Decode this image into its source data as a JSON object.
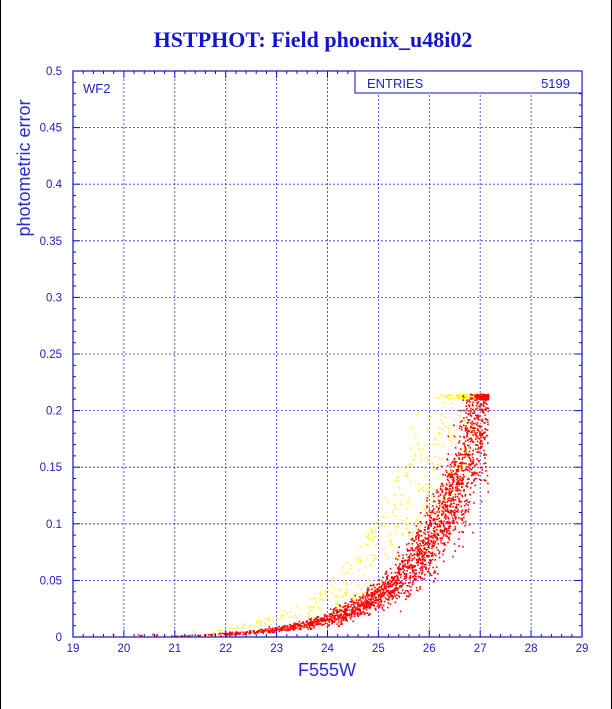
{
  "chart_data": {
    "type": "scatter",
    "title": "HSTPHOT: Field phoenix_u48i02",
    "xlabel": "F555W",
    "ylabel": "photometric error",
    "xlim": [
      19,
      29
    ],
    "ylim": [
      0,
      0.5
    ],
    "xticks": [
      "19",
      "20",
      "21",
      "22",
      "23",
      "24",
      "25",
      "26",
      "27",
      "28",
      "29"
    ],
    "yticks": [
      "0",
      "0.05",
      "0.1",
      "0.15",
      "0.2",
      "0.25",
      "0.3",
      "0.35",
      "0.4",
      "0.45",
      "0.5"
    ],
    "grid": true,
    "panel_label": "WF2",
    "stats_box": {
      "label": "ENTRIES",
      "value": "5199"
    },
    "series": [
      {
        "color": "#ffff00",
        "envelope": {
          "mag_min": 20.7,
          "mag_max": 27.05,
          "err_max": 0.215
        }
      },
      {
        "color": "#ff0000",
        "envelope": {
          "mag_min": 19.3,
          "mag_max": 27.15,
          "err_max": 0.215
        }
      }
    ],
    "colors": {
      "frame": "#1010c0",
      "grid": "#3030d0",
      "title": "#1414c8"
    }
  }
}
